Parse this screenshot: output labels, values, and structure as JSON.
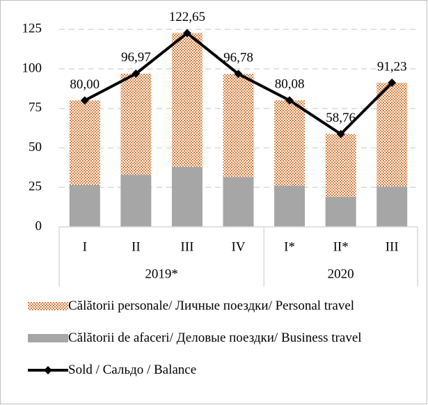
{
  "chart_data": {
    "type": "bar",
    "categories": [
      "I",
      "II",
      "III",
      "IV",
      "I*",
      "II*",
      "III"
    ],
    "groups": [
      {
        "name": "2019*",
        "span": 4
      },
      {
        "name": "2020",
        "span": 3
      }
    ],
    "series": [
      {
        "name": "Călătorii de afaceri/ Деловые поездки/ Business travel",
        "type": "bar",
        "color": "#a6a6a6",
        "values": [
          26.5,
          33,
          38,
          31.5,
          26,
          19,
          25.5
        ]
      },
      {
        "name": "Călătorii personale/ Личные поездки/ Personal travel",
        "type": "bar",
        "color": "#e07b39",
        "pattern": "dots",
        "values": [
          53.5,
          64,
          84.7,
          65.3,
          54.1,
          39.8,
          65.7
        ]
      },
      {
        "name": "Sold / Сальдо / Balance",
        "type": "line",
        "color": "#000000",
        "values": [
          80.0,
          96.97,
          122.65,
          96.78,
          80.08,
          58.76,
          91.23
        ],
        "value_labels": [
          "80,00",
          "96,97",
          "122,65",
          "96,78",
          "80,08",
          "58,76",
          "91,23"
        ]
      }
    ],
    "legend_order": [
      1,
      0,
      2
    ],
    "ylim": [
      0,
      137
    ],
    "yticks": [
      0,
      25,
      50,
      75,
      100,
      125
    ],
    "grid": true
  }
}
